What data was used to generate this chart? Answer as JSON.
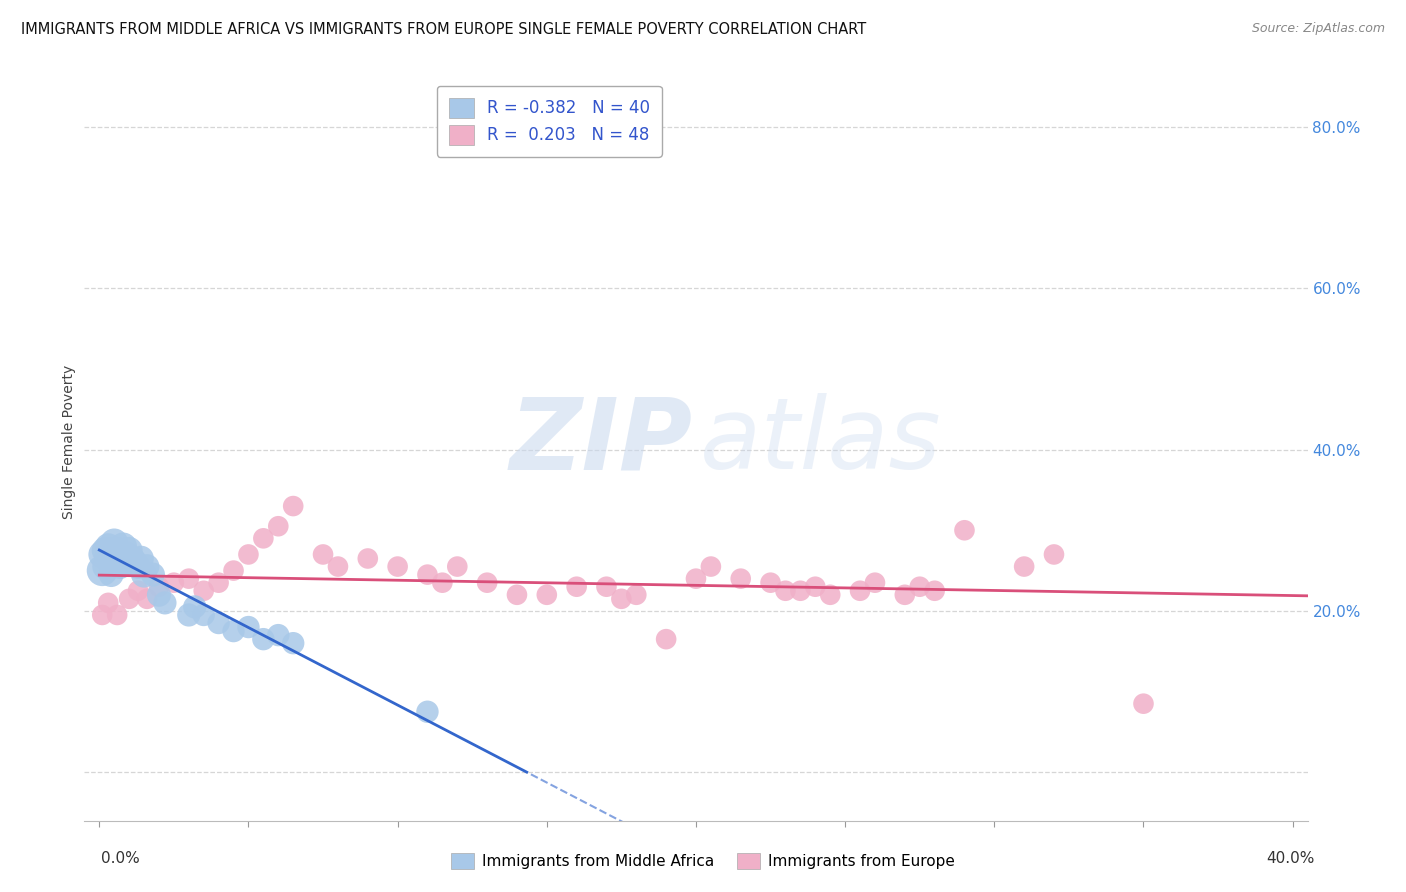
{
  "title": "IMMIGRANTS FROM MIDDLE AFRICA VS IMMIGRANTS FROM EUROPE SINGLE FEMALE POVERTY CORRELATION CHART",
  "source": "Source: ZipAtlas.com",
  "ylabel": "Single Female Poverty",
  "series1_label": "Immigrants from Middle Africa",
  "series1_color": "#a8c8e8",
  "series1_line_color": "#3366cc",
  "series1_R": -0.382,
  "series1_N": 40,
  "series2_label": "Immigrants from Europe",
  "series2_color": "#f0b0c8",
  "series2_line_color": "#d94f7a",
  "series2_R": 0.203,
  "series2_N": 48,
  "legend_text_color": "#3355cc",
  "background_color": "#ffffff",
  "grid_color": "#cccccc",
  "ytick_color": "#4488dd",
  "xlim": [
    -0.005,
    0.405
  ],
  "ylim": [
    -0.06,
    0.88
  ],
  "s1_x": [
    0.001,
    0.001,
    0.002,
    0.002,
    0.003,
    0.003,
    0.004,
    0.004,
    0.005,
    0.005,
    0.005,
    0.006,
    0.006,
    0.007,
    0.007,
    0.008,
    0.008,
    0.009,
    0.009,
    0.01,
    0.01,
    0.011,
    0.012,
    0.013,
    0.014,
    0.015,
    0.016,
    0.018,
    0.02,
    0.022,
    0.03,
    0.032,
    0.035,
    0.04,
    0.045,
    0.05,
    0.055,
    0.06,
    0.065,
    0.11
  ],
  "s1_y": [
    0.25,
    0.27,
    0.255,
    0.275,
    0.265,
    0.28,
    0.245,
    0.27,
    0.26,
    0.275,
    0.285,
    0.26,
    0.275,
    0.255,
    0.265,
    0.27,
    0.28,
    0.26,
    0.27,
    0.275,
    0.26,
    0.265,
    0.26,
    0.255,
    0.265,
    0.245,
    0.255,
    0.245,
    0.22,
    0.21,
    0.195,
    0.205,
    0.195,
    0.185,
    0.175,
    0.18,
    0.165,
    0.17,
    0.16,
    0.075
  ],
  "s1_sizes": [
    500,
    400,
    350,
    380,
    400,
    360,
    320,
    350,
    360,
    380,
    400,
    340,
    380,
    320,
    350,
    360,
    400,
    320,
    360,
    380,
    360,
    340,
    340,
    320,
    340,
    350,
    320,
    300,
    300,
    280,
    280,
    280,
    260,
    260,
    260,
    260,
    260,
    260,
    260,
    260
  ],
  "s2_x": [
    0.001,
    0.003,
    0.006,
    0.01,
    0.013,
    0.016,
    0.02,
    0.025,
    0.03,
    0.035,
    0.04,
    0.045,
    0.05,
    0.055,
    0.06,
    0.065,
    0.075,
    0.08,
    0.09,
    0.1,
    0.11,
    0.115,
    0.12,
    0.13,
    0.14,
    0.15,
    0.16,
    0.17,
    0.175,
    0.18,
    0.19,
    0.2,
    0.205,
    0.215,
    0.225,
    0.23,
    0.235,
    0.24,
    0.245,
    0.255,
    0.26,
    0.27,
    0.275,
    0.28,
    0.29,
    0.31,
    0.32,
    0.35
  ],
  "s2_y": [
    0.195,
    0.21,
    0.195,
    0.215,
    0.225,
    0.215,
    0.23,
    0.235,
    0.24,
    0.225,
    0.235,
    0.25,
    0.27,
    0.29,
    0.305,
    0.33,
    0.27,
    0.255,
    0.265,
    0.255,
    0.245,
    0.235,
    0.255,
    0.235,
    0.22,
    0.22,
    0.23,
    0.23,
    0.215,
    0.22,
    0.165,
    0.24,
    0.255,
    0.24,
    0.235,
    0.225,
    0.225,
    0.23,
    0.22,
    0.225,
    0.235,
    0.22,
    0.23,
    0.225,
    0.3,
    0.255,
    0.27,
    0.085
  ],
  "s2_sizes": [
    220,
    220,
    220,
    220,
    220,
    220,
    220,
    220,
    220,
    220,
    220,
    220,
    220,
    220,
    220,
    220,
    220,
    220,
    220,
    220,
    220,
    220,
    220,
    220,
    220,
    220,
    220,
    220,
    220,
    220,
    220,
    220,
    220,
    220,
    220,
    220,
    220,
    220,
    220,
    220,
    220,
    220,
    220,
    220,
    220,
    220,
    220,
    220
  ]
}
